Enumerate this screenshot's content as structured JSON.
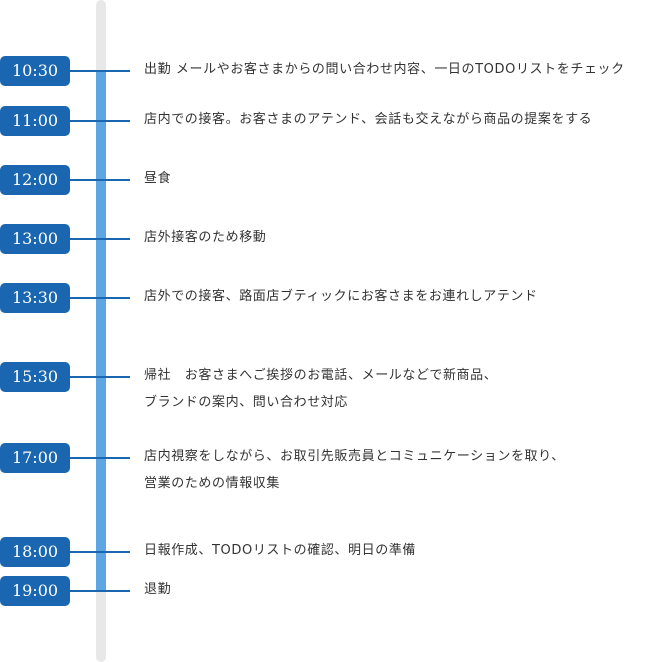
{
  "colors": {
    "accent": "#1a66b0",
    "progress": "#5ea5e4",
    "track": "#e8e8e8"
  },
  "schedule": [
    {
      "time": "10:30",
      "lines": [
        "出勤 メールやお客さまからの問い合わせ内容、一日のTODOリストをチェック"
      ]
    },
    {
      "time": "11:00",
      "lines": [
        "店内での接客。お客さまのアテンド、会話も交えながら商品の提案をする"
      ]
    },
    {
      "time": "12:00",
      "lines": [
        "昼食"
      ]
    },
    {
      "time": "13:00",
      "lines": [
        "店外接客のため移動"
      ]
    },
    {
      "time": "13:30",
      "lines": [
        "店外での接客、路面店ブティックにお客さまをお連れしアテンド"
      ]
    },
    {
      "time": "15:30",
      "lines": [
        "帰社　お客さまへご挨拶のお電話、メールなどで新商品、",
        "ブランドの案内、問い合わせ対応"
      ]
    },
    {
      "time": "17:00",
      "lines": [
        "店内視察をしながら、お取引先販売員とコミュニケーションを取り、",
        "営業のための情報収集"
      ]
    },
    {
      "time": "18:00",
      "lines": [
        "日報作成、TODOリストの確認、明日の準備"
      ]
    },
    {
      "time": "19:00",
      "lines": [
        "退勤"
      ]
    }
  ]
}
